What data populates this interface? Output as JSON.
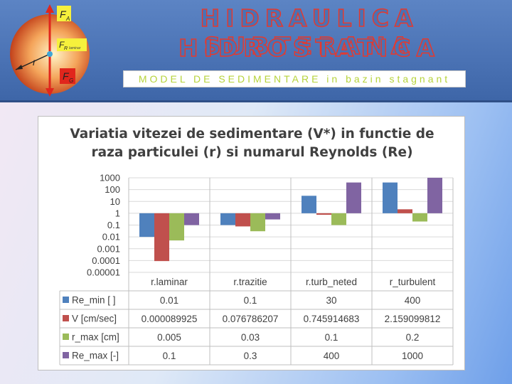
{
  "header": {
    "title_line1": "HIDRAULICA SUBTERANA",
    "title_line2": "HIDROSTATICA",
    "subtitle": "MODEL DE SEDIMENTARE in bazin stagnant",
    "colors": {
      "background": "#4a72b4",
      "title_stroke": "#e8372a",
      "subtitle_text": "#b7d33b"
    }
  },
  "illustration": {
    "labels": {
      "fa": "F",
      "fa_sub": "A",
      "fr": "F",
      "fr_sub": "R",
      "fr_note": "laminar",
      "fg": "F",
      "fg_sub": "G",
      "r": "r"
    },
    "icon": "particle-force-diagram"
  },
  "chart": {
    "title_line1": "Variatia vitezei de sedimentare (V*) in functie de",
    "title_line2": "raza particulei (r) si numarul Reynolds (Re)"
  },
  "chart_data": {
    "type": "bar",
    "log_scale": true,
    "ylim": [
      1e-05,
      1000
    ],
    "ytick_labels": [
      "1000",
      "100",
      "10",
      "1",
      "0.1",
      "0.01",
      "0.001",
      "0.0001",
      "0.00001"
    ],
    "categories": [
      "r.laminar",
      "r.trazitie",
      "r.turb_neted",
      "r_turbulent"
    ],
    "series": [
      {
        "name": "Re_min [ ]",
        "color": "#4f81bd",
        "values": [
          0.01,
          0.1,
          30,
          400
        ],
        "labels": [
          "0.01",
          "0.1",
          "30",
          "400"
        ]
      },
      {
        "name": "V [cm/sec]",
        "color": "#c0504d",
        "values": [
          8.9925e-05,
          0.076786207,
          0.745914683,
          2.159099812
        ],
        "labels": [
          "0.000089925",
          "0.076786207",
          "0.745914683",
          "2.159099812"
        ]
      },
      {
        "name": "r_max [cm]",
        "color": "#9bbb59",
        "values": [
          0.005,
          0.03,
          0.1,
          0.2
        ],
        "labels": [
          "0.005",
          "0.03",
          "0.1",
          "0.2"
        ]
      },
      {
        "name": "Re_max [-]",
        "color": "#8064a2",
        "values": [
          0.1,
          0.3,
          400,
          1000
        ],
        "labels": [
          "0.1",
          "0.3",
          "400",
          "1000"
        ]
      }
    ],
    "grid": true,
    "legend": "data-table"
  }
}
